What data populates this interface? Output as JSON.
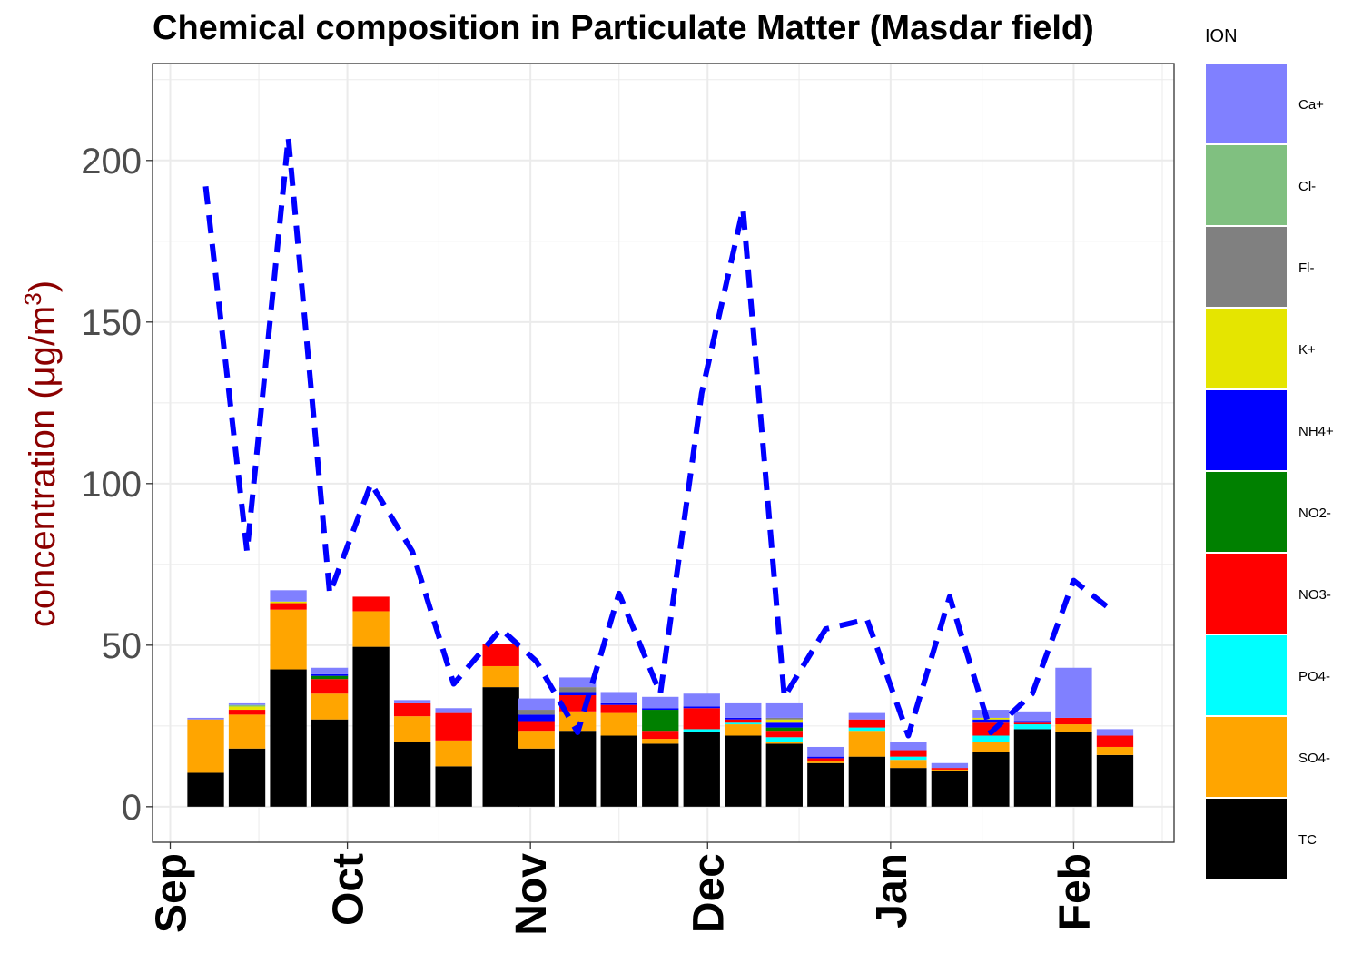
{
  "chart_data": {
    "type": "bar",
    "title": "Chemical composition in Particulate Matter (Masdar field)",
    "ylabel_main": "concentration (μg/m",
    "ylabel_sup": "3",
    "ylabel_close": ")",
    "ylabel_color": "#8b0000",
    "ylim": [
      -11,
      230
    ],
    "yticks": [
      0,
      50,
      100,
      150,
      200
    ],
    "ytick_labels": [
      "0",
      "50",
      "100",
      "150",
      "200"
    ],
    "xlim": [
      "2020-08-29",
      "2021-02-18"
    ],
    "xticks": [
      "2020-09-01",
      "2020-10-01",
      "2020-11-01",
      "2020-12-01",
      "2021-01-01",
      "2021-02-01"
    ],
    "xtick_labels": [
      "Sep",
      "Oct",
      "Nov",
      "Dec",
      "Jan",
      "Feb"
    ],
    "grid": true,
    "legend_title": "ION",
    "legend_position": "right",
    "legend_order": [
      "Ca+",
      "Cl-",
      "Fl-",
      "K+",
      "NH4+",
      "NO2-",
      "NO3-",
      "PO4-",
      "SO4-",
      "TC"
    ],
    "stack_order": [
      "TC",
      "SO4-",
      "PO4-",
      "NO3-",
      "NO2-",
      "NH4+",
      "K+",
      "Fl-",
      "Cl-",
      "Ca+"
    ],
    "colors": {
      "Ca+": "#8080ff",
      "Cl-": "#80c080",
      "Fl-": "#808080",
      "K+": "#e5e500",
      "NH4+": "#0000ff",
      "NO2-": "#008000",
      "NO3-": "#ff0000",
      "PO4-": "#00ffff",
      "SO4-": "#ffa500",
      "TC": "#000000"
    },
    "dates": [
      "2020-09-07",
      "2020-09-14",
      "2020-09-21",
      "2020-09-28",
      "2020-10-05",
      "2020-10-12",
      "2020-10-19",
      "2020-10-27",
      "2020-11-02",
      "2020-11-09",
      "2020-11-16",
      "2020-11-23",
      "2020-11-30",
      "2020-12-07",
      "2020-12-14",
      "2020-12-21",
      "2020-12-28",
      "2021-01-04",
      "2021-01-11",
      "2021-01-18",
      "2021-01-25",
      "2021-02-01",
      "2021-02-08"
    ],
    "series": [
      {
        "name": "TC",
        "values": [
          10.5,
          18,
          42.5,
          27,
          49.5,
          20,
          12.5,
          37,
          18,
          23.5,
          22,
          19.5,
          23,
          22,
          19.5,
          13.5,
          15.5,
          12,
          11,
          17,
          24,
          23,
          16
        ]
      },
      {
        "name": "SO4-",
        "values": [
          16.5,
          10.5,
          18.5,
          8,
          11,
          8,
          8,
          6.5,
          5.5,
          6,
          7,
          1.5,
          0,
          3.5,
          0.5,
          0.5,
          8,
          2.5,
          0.5,
          3,
          0,
          2.5,
          2.5
        ]
      },
      {
        "name": "PO4-",
        "values": [
          0,
          0,
          0,
          0,
          0,
          0,
          0,
          0,
          0,
          0,
          0,
          0,
          1,
          0.5,
          1.5,
          0,
          1,
          1,
          0,
          2,
          1.5,
          0,
          0
        ]
      },
      {
        "name": "NO3-",
        "values": [
          0,
          1.5,
          2,
          4.5,
          4.5,
          4,
          8.5,
          7,
          3,
          5,
          2.5,
          2.5,
          6.5,
          1,
          2,
          1,
          2.5,
          2,
          0.5,
          4,
          0.5,
          2,
          3.5
        ]
      },
      {
        "name": "NO2-",
        "values": [
          0,
          0,
          0,
          1,
          0,
          0,
          0,
          0,
          0,
          0,
          0,
          6.5,
          0,
          0,
          1,
          0,
          0,
          0,
          0,
          0,
          0,
          0,
          0
        ]
      },
      {
        "name": "NH4+",
        "values": [
          0,
          0,
          0,
          0.5,
          0,
          0,
          0,
          0,
          2,
          1,
          0.5,
          0.5,
          0.5,
          0.5,
          1.5,
          0.5,
          0,
          0,
          0,
          1,
          0.5,
          0,
          0
        ]
      },
      {
        "name": "K+",
        "values": [
          0,
          1,
          0.5,
          0,
          0,
          0,
          0,
          0,
          0,
          0,
          0,
          0,
          0,
          0,
          1,
          0,
          0,
          0,
          0,
          0.5,
          0,
          0,
          0
        ]
      },
      {
        "name": "Fl-",
        "values": [
          0,
          0,
          0,
          0,
          0,
          0,
          0,
          0,
          1.5,
          1.5,
          0,
          0,
          0,
          0,
          0.5,
          0,
          0,
          0,
          0,
          0,
          0,
          0,
          0
        ]
      },
      {
        "name": "Cl-",
        "values": [
          0,
          0.5,
          0,
          0,
          0,
          0,
          0,
          0,
          0,
          0,
          0,
          0,
          0,
          0,
          0,
          0,
          0,
          0,
          0,
          0,
          0,
          0,
          0
        ]
      },
      {
        "name": "Ca+",
        "values": [
          0.5,
          0.5,
          3.5,
          2,
          0,
          1,
          1.5,
          0,
          3.5,
          3,
          3.5,
          3.5,
          4,
          4.5,
          4.5,
          3,
          2,
          2.5,
          1.5,
          2.5,
          3,
          15.5,
          2
        ]
      }
    ],
    "line": {
      "style": "dashed",
      "color": "#0000ff",
      "dates": [
        "2020-09-07",
        "2020-09-14",
        "2020-09-21",
        "2020-09-28",
        "2020-10-05",
        "2020-10-12",
        "2020-10-19",
        "2020-10-27",
        "2020-11-02",
        "2020-11-09",
        "2020-11-16",
        "2020-11-23",
        "2020-11-30",
        "2020-12-07",
        "2020-12-14",
        "2020-12-21",
        "2020-12-28",
        "2021-01-04",
        "2021-01-11",
        "2021-01-18",
        "2021-01-25",
        "2021-02-01",
        "2021-02-08"
      ],
      "values": [
        192,
        79,
        207,
        66,
        100,
        79,
        38,
        55,
        45,
        23,
        66,
        35,
        128,
        185,
        34,
        55,
        58,
        22,
        65,
        23,
        35,
        70,
        60
      ]
    }
  }
}
